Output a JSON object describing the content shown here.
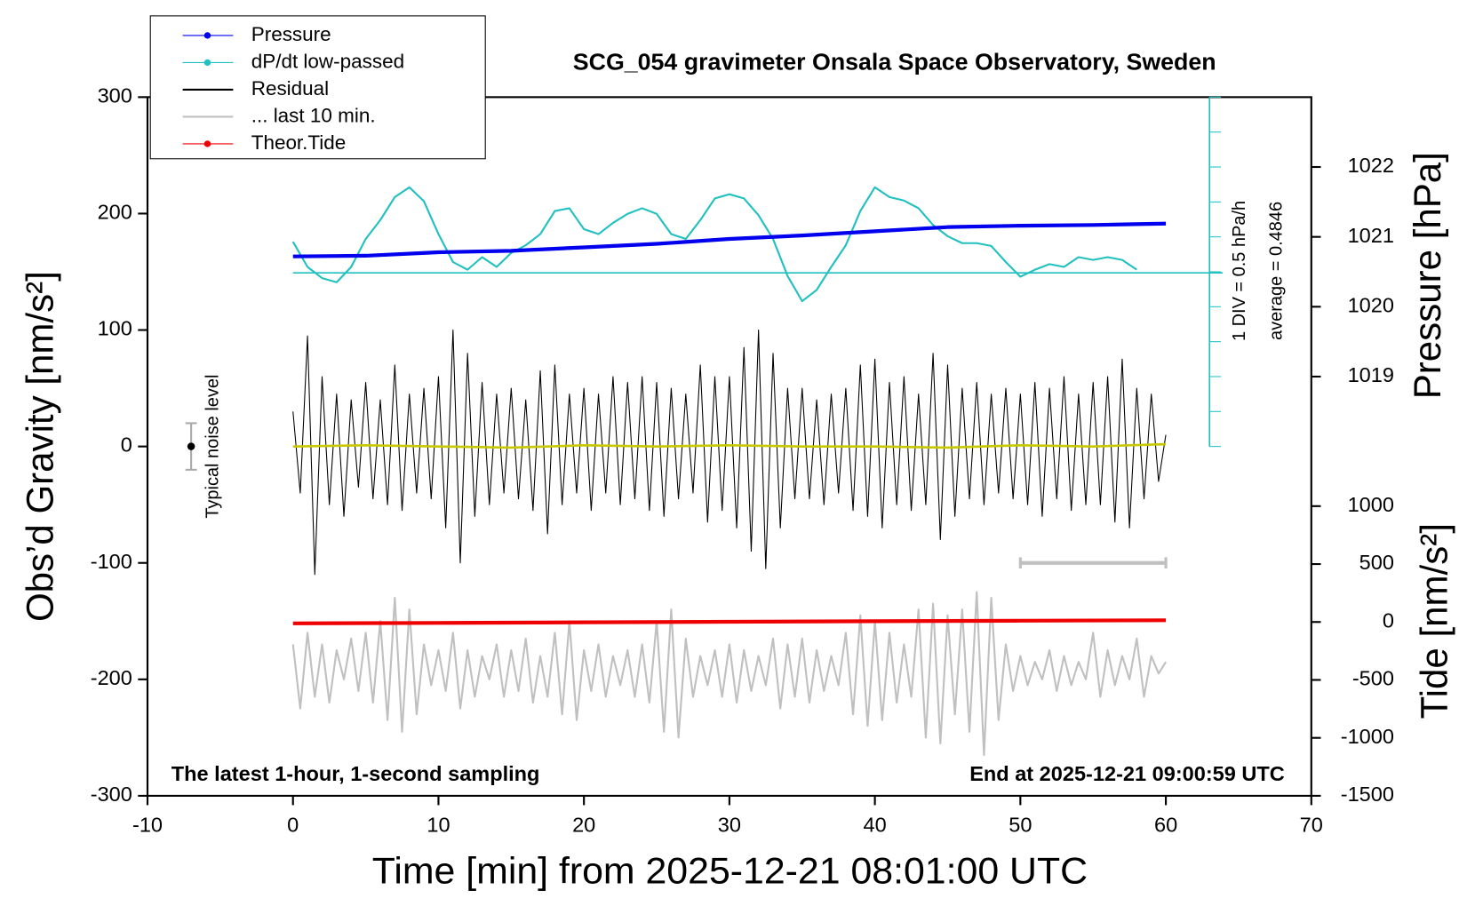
{
  "chart_data": {
    "type": "line",
    "title": "SCG_054 gravimeter Onsala Space Observatory, Sweden",
    "note_left": "The latest 1-hour, 1-second sampling",
    "note_right": "End at 2025-12-21 09:00:59 UTC",
    "xlabel": "Time [min] from 2025-12-21 08:01:00 UTC",
    "ylabel": "Obs’d Gravity [nm/s²]",
    "y2label": "Pressure [hPa]",
    "y3label": "Tide [nm/s²]",
    "xlim": [
      -10,
      70
    ],
    "xticks": [
      -10,
      0,
      10,
      20,
      30,
      40,
      50,
      60,
      70
    ],
    "ylim": [
      -300,
      300
    ],
    "yticks": [
      -300,
      -200,
      -100,
      0,
      100,
      200,
      300
    ],
    "y2lim": [
      1013,
      1023
    ],
    "y2ticks": [
      1019,
      1020,
      1021,
      1022
    ],
    "y3lim": [
      -1500,
      4530
    ],
    "y3ticks": [
      -1500,
      -1000,
      -500,
      0,
      500,
      1000
    ],
    "y4lim": [
      -2,
      3
    ],
    "y4ticks": [
      -2,
      -1.5,
      -1,
      -0.5,
      0,
      0.5,
      1,
      1.5,
      2,
      2.5,
      3
    ],
    "y4color": "#22c0c0",
    "div_label": "1 DIV = 0.5 hPa/h",
    "dpdt_average": 0.4846,
    "average_label": "average = 0.4846",
    "noise": {
      "x": -7,
      "value": 0,
      "error": 20,
      "label": "Typical noise level"
    },
    "span": {
      "x": [
        50,
        60
      ],
      "y": -100,
      "color": "#c0c0c0"
    },
    "x": [
      0,
      0.5,
      1,
      1.5,
      2,
      2.5,
      3,
      3.5,
      4,
      4.5,
      5,
      5.5,
      6,
      6.5,
      7,
      7.5,
      8,
      8.5,
      9,
      9.5,
      10,
      10.5,
      11,
      11.5,
      12,
      12.5,
      13,
      13.5,
      14,
      14.5,
      15,
      15.5,
      16,
      16.5,
      17,
      17.5,
      18,
      18.5,
      19,
      19.5,
      20,
      20.5,
      21,
      21.5,
      22,
      22.5,
      23,
      23.5,
      24,
      24.5,
      25,
      25.5,
      26,
      26.5,
      27,
      27.5,
      28,
      28.5,
      29,
      29.5,
      30,
      30.5,
      31,
      31.5,
      32,
      32.5,
      33,
      33.5,
      34,
      34.5,
      35,
      35.5,
      36,
      36.5,
      37,
      37.5,
      38,
      38.5,
      39,
      39.5,
      40,
      40.5,
      41,
      41.5,
      42,
      42.5,
      43,
      43.5,
      44,
      44.5,
      45,
      45.5,
      46,
      46.5,
      47,
      47.5,
      48,
      48.5,
      49,
      49.5,
      50,
      50.5,
      51,
      51.5,
      52,
      52.5,
      53,
      53.5,
      54,
      54.5,
      55,
      55.5,
      56,
      56.5,
      57,
      57.5,
      58,
      58.5,
      59,
      59.5,
      60
    ],
    "series": [
      {
        "name": "Pressure",
        "color": "#0000ee",
        "axis": "y2",
        "marker": true,
        "x": [
          0,
          5,
          10,
          15,
          20,
          25,
          30,
          35,
          40,
          45,
          50,
          55,
          60
        ],
        "values": [
          1020.72,
          1020.73,
          1020.78,
          1020.8,
          1020.85,
          1020.9,
          1020.97,
          1021.02,
          1021.08,
          1021.14,
          1021.16,
          1021.17,
          1021.19
        ]
      },
      {
        "name": "dP/dt low-passed",
        "color": "#22c0c0",
        "axis": "y4",
        "marker": true,
        "x": [
          0,
          1,
          2,
          3,
          4,
          5,
          6,
          7,
          8,
          9,
          10,
          11,
          12,
          13,
          14,
          15,
          16,
          17,
          18,
          19,
          20,
          21,
          22,
          23,
          24,
          25,
          26,
          27,
          28,
          29,
          30,
          31,
          32,
          33,
          34,
          35,
          36,
          37,
          38,
          39,
          40,
          41,
          42,
          43,
          44,
          45,
          46,
          47,
          48,
          49,
          50,
          51,
          52,
          53,
          54,
          55,
          56,
          57,
          58
        ],
        "values": [
          0.93,
          0.57,
          0.41,
          0.35,
          0.57,
          0.97,
          1.24,
          1.57,
          1.71,
          1.51,
          1.04,
          0.64,
          0.53,
          0.71,
          0.57,
          0.77,
          0.88,
          1.04,
          1.37,
          1.41,
          1.11,
          1.04,
          1.2,
          1.33,
          1.41,
          1.33,
          1.04,
          0.97,
          1.24,
          1.55,
          1.61,
          1.55,
          1.31,
          0.97,
          0.44,
          0.08,
          0.24,
          0.57,
          0.88,
          1.37,
          1.71,
          1.57,
          1.52,
          1.41,
          1.17,
          1.01,
          0.91,
          0.91,
          0.87,
          0.64,
          0.43,
          0.53,
          0.61,
          0.57,
          0.71,
          0.67,
          0.71,
          0.67,
          0.53
        ]
      },
      {
        "name": "Residual",
        "color": "#000000",
        "axis": "y",
        "values": [
          30,
          -40,
          95,
          -110,
          60,
          -50,
          45,
          -60,
          40,
          -35,
          55,
          -45,
          40,
          -50,
          70,
          -55,
          45,
          -40,
          50,
          -45,
          60,
          -70,
          100,
          -100,
          80,
          -60,
          55,
          -50,
          45,
          -40,
          50,
          -45,
          40,
          -55,
          65,
          -75,
          70,
          -50,
          45,
          -40,
          50,
          -55,
          45,
          -40,
          60,
          -50,
          55,
          -45,
          60,
          -55,
          55,
          -60,
          50,
          -45,
          45,
          -40,
          70,
          -65,
          60,
          -55,
          60,
          -70,
          85,
          -90,
          100,
          -105,
          80,
          -70,
          50,
          -45,
          50,
          -45,
          40,
          -50,
          45,
          -40,
          50,
          -55,
          70,
          -60,
          75,
          -70,
          55,
          -50,
          60,
          -55,
          45,
          -50,
          80,
          -80,
          70,
          -60,
          50,
          -45,
          55,
          -50,
          45,
          -40,
          50,
          -45,
          45,
          -50,
          55,
          -60,
          50,
          -45,
          60,
          -55,
          45,
          -50,
          55,
          -50,
          60,
          -65,
          75,
          -70,
          50,
          -45,
          45,
          -30,
          10
        ]
      },
      {
        "name": "... last 10 min.",
        "color": "#c0c0c0",
        "axis": "y",
        "values": [
          -170,
          -225,
          -160,
          -215,
          -170,
          -220,
          -175,
          -200,
          -165,
          -210,
          -160,
          -220,
          -150,
          -235,
          -130,
          -245,
          -140,
          -230,
          -170,
          -205,
          -175,
          -210,
          -160,
          -225,
          -175,
          -215,
          -180,
          -200,
          -170,
          -215,
          -175,
          -210,
          -165,
          -220,
          -180,
          -215,
          -160,
          -230,
          -150,
          -235,
          -175,
          -210,
          -170,
          -215,
          -180,
          -205,
          -175,
          -215,
          -170,
          -220,
          -150,
          -245,
          -140,
          -250,
          -165,
          -215,
          -180,
          -205,
          -175,
          -215,
          -170,
          -220,
          -175,
          -210,
          -180,
          -205,
          -165,
          -225,
          -170,
          -215,
          -165,
          -220,
          -175,
          -210,
          -180,
          -205,
          -160,
          -230,
          -145,
          -240,
          -150,
          -235,
          -160,
          -220,
          -170,
          -215,
          -140,
          -250,
          -135,
          -255,
          -145,
          -230,
          -140,
          -245,
          -125,
          -265,
          -130,
          -235,
          -170,
          -210,
          -180,
          -205,
          -185,
          -200,
          -175,
          -210,
          -180,
          -205,
          -185,
          -200,
          -160,
          -215,
          -175,
          -205,
          -180,
          -200,
          -165,
          -215,
          -180,
          -195,
          -185
        ]
      },
      {
        "color": "#c8c800",
        "axis": "y",
        "x": [
          0,
          5,
          10,
          15,
          20,
          25,
          30,
          35,
          40,
          45,
          50,
          55,
          60
        ],
        "values": [
          0,
          1,
          0,
          -1,
          1,
          0,
          1,
          0,
          0,
          -1,
          1,
          0,
          2
        ]
      },
      {
        "name": "Theor.Tide",
        "color": "#ee0000",
        "axis": "y3",
        "marker": true,
        "x": [
          0,
          10,
          20,
          30,
          40,
          50,
          60
        ],
        "values": [
          -12,
          -8,
          -3,
          2,
          7,
          11,
          15
        ]
      }
    ]
  }
}
